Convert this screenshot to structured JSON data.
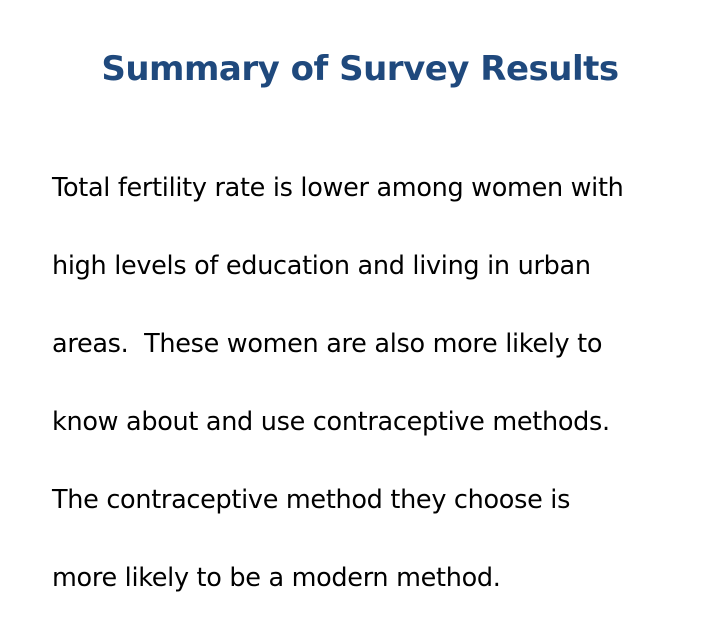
{
  "slide": {
    "title": "Summary of Survey Results",
    "body_lines": [
      "Total fertility rate is lower among women with",
      "high levels of education and living in urban",
      "areas.  These women are also more likely to",
      "know about and use contraceptive methods.",
      "The contraceptive method they choose is",
      "more likely to be a modern method."
    ]
  },
  "colors": {
    "title": "#1f497d",
    "body_text": "#000000",
    "background": "#ffffff"
  }
}
